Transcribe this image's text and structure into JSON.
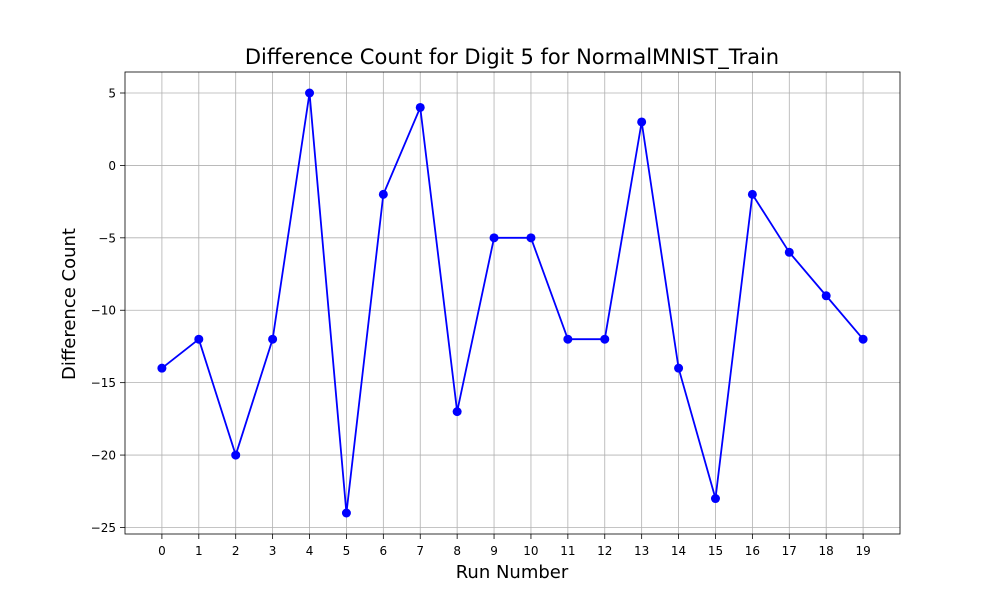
{
  "chart_data": {
    "type": "line",
    "title": "Difference Count for Digit 5 for NormalMNIST_Train",
    "xlabel": "Run Number",
    "ylabel": "Difference Count",
    "x": [
      0,
      1,
      2,
      3,
      4,
      5,
      6,
      7,
      8,
      9,
      10,
      11,
      12,
      13,
      14,
      15,
      16,
      17,
      18,
      19
    ],
    "series": [
      {
        "values": [
          -14,
          -12,
          -20,
          -12,
          5,
          -24,
          -2,
          4,
          -17,
          -5,
          -5,
          -12,
          -12,
          3,
          -14,
          -23,
          -2,
          -6,
          -9,
          -12
        ],
        "color": "#0000ff",
        "marker": "circle"
      }
    ],
    "xticks": [
      "0",
      "1",
      "2",
      "3",
      "4",
      "5",
      "6",
      "7",
      "8",
      "9",
      "10",
      "11",
      "12",
      "13",
      "14",
      "15",
      "16",
      "17",
      "18",
      "19"
    ],
    "yticks": [
      5,
      0,
      -5,
      -10,
      -15,
      -20,
      -25
    ],
    "ytick_labels": [
      "5",
      "0",
      "−5",
      "−10",
      "−15",
      "−20",
      "−25"
    ],
    "xlim": [
      -1,
      20
    ],
    "ylim": [
      -25.45,
      6.45
    ],
    "grid": true
  }
}
